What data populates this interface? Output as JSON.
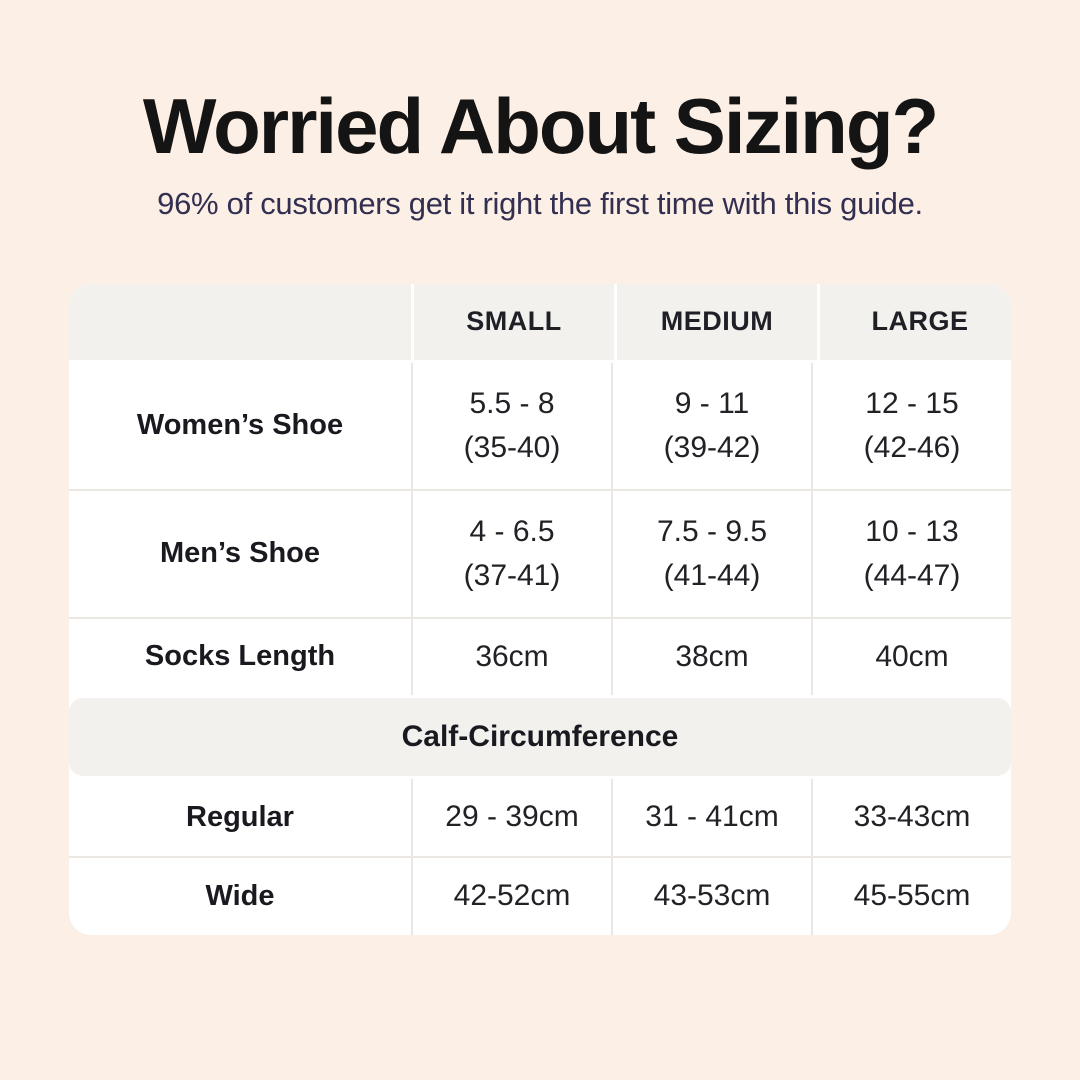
{
  "page": {
    "background": "#fcefe6",
    "card_background": "#ffffff",
    "band_color": "#f3f1ee",
    "divider_color": "#ebe8e4",
    "title_color": "#141414",
    "subtitle_color": "#322f50",
    "text_color": "#212126"
  },
  "header": {
    "title": "Worried About Sizing?",
    "subtitle": "96% of customers get it right the first time with this guide."
  },
  "table": {
    "columns": [
      "",
      "SMALL",
      "MEDIUM",
      "LARGE"
    ],
    "rows": [
      {
        "label": "Women’s Shoe",
        "cells": [
          {
            "line1": "5.5 - 8",
            "line2": "(35-40)"
          },
          {
            "line1": "9 - 11",
            "line2": "(39-42)"
          },
          {
            "line1": "12 - 15",
            "line2": "(42-46)"
          }
        ]
      },
      {
        "label": "Men’s Shoe",
        "cells": [
          {
            "line1": "4 - 6.5",
            "line2": "(37-41)"
          },
          {
            "line1": "7.5 - 9.5",
            "line2": "(41-44)"
          },
          {
            "line1": "10 - 13",
            "line2": "(44-47)"
          }
        ]
      },
      {
        "label": "Socks Length",
        "cells": [
          {
            "line1": "36cm"
          },
          {
            "line1": "38cm"
          },
          {
            "line1": "40cm"
          }
        ]
      }
    ],
    "section_title": "Calf-Circumference",
    "section_rows": [
      {
        "label": "Regular",
        "cells": [
          {
            "line1": "29 - 39cm"
          },
          {
            "line1": "31 - 41cm"
          },
          {
            "line1": "33-43cm"
          }
        ]
      },
      {
        "label": "Wide",
        "cells": [
          {
            "line1": "42-52cm"
          },
          {
            "line1": "43-53cm"
          },
          {
            "line1": "45-55cm"
          }
        ]
      }
    ]
  },
  "chart_data": {
    "type": "table",
    "title": "Worried About Sizing?",
    "subtitle": "96% of customers get it right the first time with this guide.",
    "columns": [
      "",
      "SMALL",
      "MEDIUM",
      "LARGE"
    ],
    "rows": [
      [
        "Women’s Shoe",
        "5.5 - 8 (35-40)",
        "9 - 11 (39-42)",
        "12 - 15 (42-46)"
      ],
      [
        "Men’s Shoe",
        "4 - 6.5 (37-41)",
        "7.5 - 9.5 (41-44)",
        "10 - 13 (44-47)"
      ],
      [
        "Socks Length",
        "36cm",
        "38cm",
        "40cm"
      ],
      [
        "Calf-Circumference",
        "",
        "",
        ""
      ],
      [
        "Regular",
        "29 - 39cm",
        "31 - 41cm",
        "33-43cm"
      ],
      [
        "Wide",
        "42-52cm",
        "43-53cm",
        "45-55cm"
      ]
    ],
    "layout": {
      "section_row_index": 3,
      "section_spans_all_columns": true
    }
  }
}
